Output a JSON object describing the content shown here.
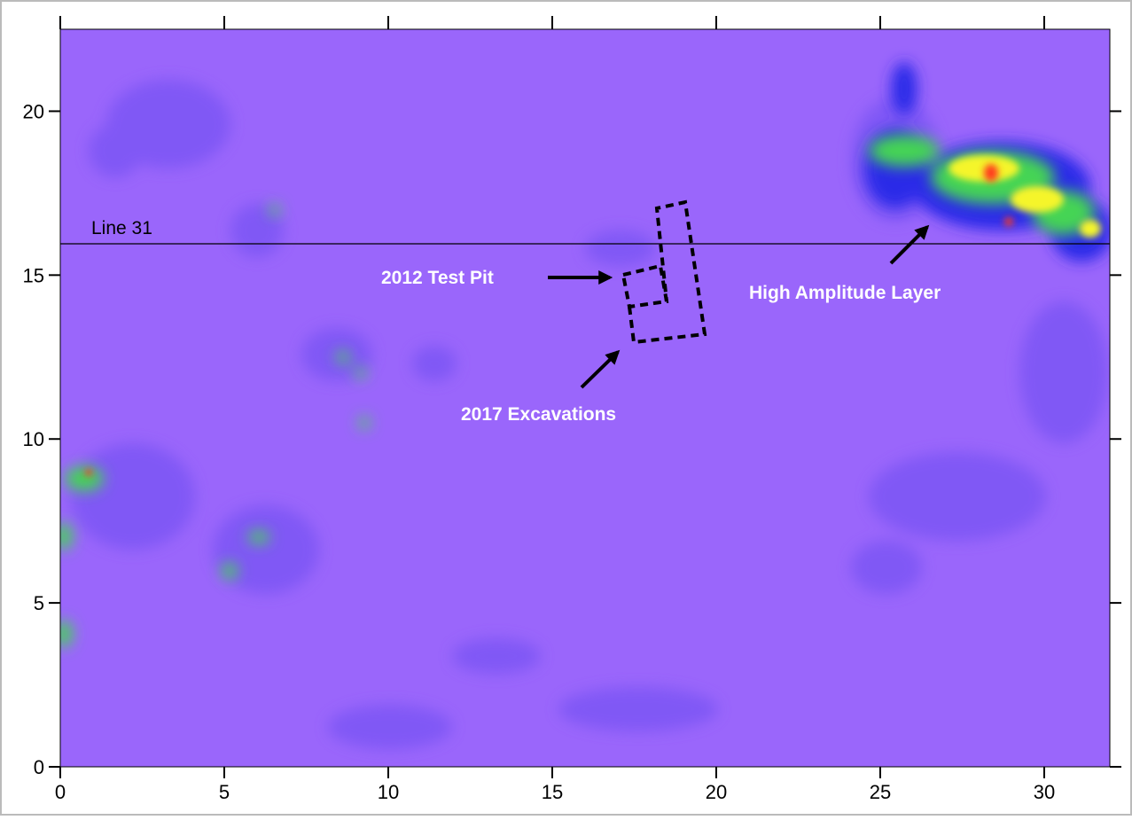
{
  "chart_data": {
    "type": "heatmap",
    "xlim": [
      0,
      32
    ],
    "ylim": [
      0,
      22.5
    ],
    "xticks": [
      0,
      5,
      10,
      15,
      20,
      25,
      30
    ],
    "yticks": [
      0,
      5,
      10,
      15,
      20
    ],
    "annotations": [
      "Line 31",
      "2012 Test Pit",
      "High Amplitude Layer",
      "2017 Excavations"
    ]
  }
}
